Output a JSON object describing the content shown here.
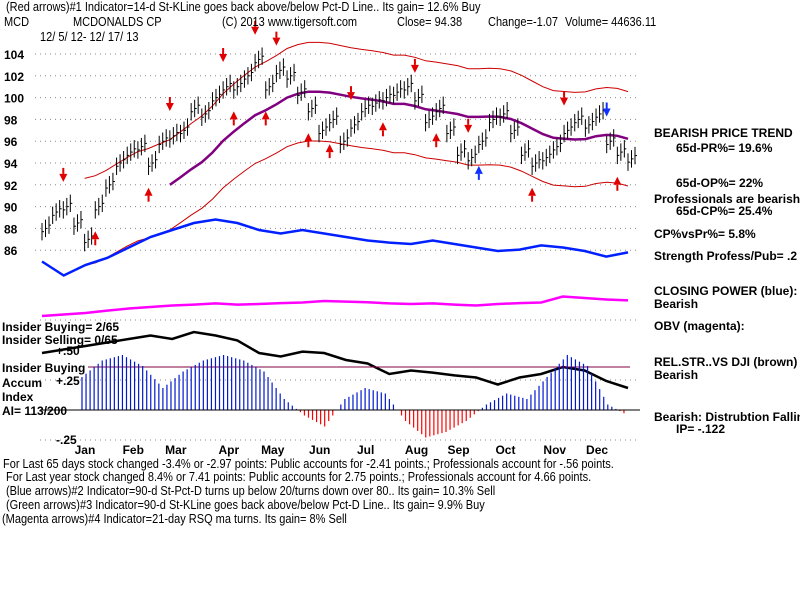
{
  "header": {
    "indicator1": "(Red arrows)#1 Indicator=14-d St-KLine goes back above/below Pct-D Line.. Its gain= 12.6% Buy",
    "symbol": "MCD",
    "company": "MCDONALDS CP",
    "copyright": "(C) 2013 www.tigersoft.com",
    "close": "Close=  94.38",
    "change": "Change=-1.07",
    "volume": "Volume= 44636.11",
    "date_range": "12/ 5/ 12- 12/ 17/ 13"
  },
  "right_panel": {
    "trend": "BEARISH PRICE TREND",
    "pr": "65d-PR%= 19.6%",
    "op": "65d-OP%= 22%",
    "pros": "Professionals are bearish",
    "cp": "65d-CP%= 25.4%",
    "cpvspr": "CP%vsPr%=  5.8%",
    "strength": "Strength Profess/Pub= .2",
    "closing_power": "CLOSING POWER (blue):",
    "closing_power_val": "Bearish",
    "obv": "OBV (magenta):",
    "relstr": "REL.STR..VS DJI (brown)",
    "relstr_val": "Bearish",
    "distribution": "Bearish: Distrubtion Falling",
    "ip": "IP= -.122"
  },
  "left_panel": {
    "insider_buying": "Insider Buying= 2/65",
    "insider_selling": "Insider Selling= 0/65",
    "plus50": "+.50",
    "insider_buying2": "Insider Buying",
    "accum": "Accum",
    "plus25": "+.25",
    "index": "Index",
    "ai": "AI= 113/200",
    "minus25": "-.25"
  },
  "footer": {
    "line1": "For Last 65 days stock changed -3.4% or -2.97 points:  Public accounts for -2.41 points.;  Professionals account for -.56 points.",
    "line2": "For Last year stock changed  8.4% or  7.41 points:  Public accounts for  2.75 points.;  Professionals account for  4.66 points.",
    "line3": "(Blue arrows)#2 Indicator=90-d St-Pct-D turns up below 20/turns down over 80.. Its gain= 10.3% Sell",
    "line4": "(Green arrows)#3 Indicator=90-d St-KLine goes back above/below Pct-D Line.. Its gain= 9.9% Buy",
    "line5": "(Magenta arrows)#4 Indicator=21-day RSQ ma turns. Its gain= 8% Sell"
  },
  "chart_data": {
    "type": "line",
    "title": "MCD MCDONALDS CP",
    "ylim": [
      86,
      104
    ],
    "yticks": [
      "104",
      "102",
      "100",
      "98",
      "96",
      "94",
      "92",
      "90",
      "88",
      "86"
    ],
    "months": [
      "Jan",
      "Feb",
      "Mar",
      "Apr",
      "May",
      "Jun",
      "Jul",
      "Aug",
      "Sep",
      "Oct",
      "Nov",
      "Dec"
    ],
    "month_week_index": [
      4,
      8.5,
      12.5,
      17.5,
      21.5,
      26,
      30.5,
      35,
      39,
      43.5,
      48,
      52
    ],
    "closes": [
      88,
      89.5,
      90,
      88.5,
      87,
      90,
      92,
      94,
      95,
      95.5,
      94,
      96,
      96.5,
      97,
      99,
      98.5,
      100,
      101,
      101,
      102,
      103.5,
      101,
      102.5,
      102,
      100.5,
      99,
      97,
      98,
      96,
      97.5,
      99,
      99.5,
      100,
      100.5,
      101,
      100,
      98,
      99,
      97,
      95,
      94.5,
      96,
      98,
      98.5,
      97,
      95,
      94,
      94.5,
      95.5,
      97,
      98,
      97.5,
      98.5,
      96,
      95,
      94.38
    ],
    "closing_power": [
      0.55,
      0.35,
      0.5,
      0.6,
      0.75,
      0.9,
      1.0,
      1.1,
      1.15,
      1.1,
      1.0,
      0.95,
      1.0,
      0.95,
      0.9,
      0.85,
      0.82,
      0.8,
      0.85,
      0.8,
      0.75,
      0.7,
      0.72,
      0.78,
      0.75,
      0.7,
      0.62,
      0.68
    ],
    "obv": [
      0.2,
      0.25,
      0.3,
      0.38,
      0.45,
      0.5,
      0.55,
      0.58,
      0.62,
      0.58,
      0.6,
      0.63,
      0.65,
      0.7,
      0.68,
      0.66,
      0.62,
      0.6,
      0.62,
      0.58,
      0.55,
      0.6,
      0.63,
      0.65,
      0.85,
      0.8,
      0.75,
      0.72
    ],
    "rel_strength": [
      0.6,
      0.65,
      0.7,
      0.75,
      0.8,
      0.85,
      0.8,
      0.9,
      0.85,
      0.78,
      0.6,
      0.55,
      0.62,
      0.6,
      0.5,
      0.45,
      0.3,
      0.35,
      0.32,
      0.28,
      0.25,
      0.15,
      0.25,
      0.3,
      0.4,
      0.35,
      0.2,
      0.1
    ],
    "accum_index": [
      0.3,
      0.45,
      0.5,
      0.4,
      0.2,
      0.35,
      0.45,
      0.5,
      0.45,
      0.35,
      0.1,
      -0.05,
      -0.15,
      0.1,
      0.2,
      0.15,
      -0.1,
      -0.25,
      -0.2,
      -0.1,
      0.05,
      0.15,
      0.1,
      0.3,
      0.5,
      0.4,
      0.05,
      -0.05
    ],
    "arrows": [
      {
        "week": 2,
        "dir": "down",
        "color": "red"
      },
      {
        "week": 5,
        "dir": "up",
        "color": "red"
      },
      {
        "week": 12,
        "dir": "down",
        "color": "red"
      },
      {
        "week": 10,
        "dir": "up",
        "color": "red"
      },
      {
        "week": 17,
        "dir": "down",
        "color": "red"
      },
      {
        "week": 20,
        "dir": "down",
        "color": "red"
      },
      {
        "week": 22,
        "dir": "down",
        "color": "red"
      },
      {
        "week": 18,
        "dir": "up",
        "color": "red"
      },
      {
        "week": 21,
        "dir": "up",
        "color": "red"
      },
      {
        "week": 25,
        "dir": "up",
        "color": "red"
      },
      {
        "week": 27,
        "dir": "up",
        "color": "red"
      },
      {
        "week": 29,
        "dir": "down",
        "color": "red"
      },
      {
        "week": 32,
        "dir": "up",
        "color": "red"
      },
      {
        "week": 35,
        "dir": "down",
        "color": "red"
      },
      {
        "week": 37,
        "dir": "up",
        "color": "red"
      },
      {
        "week": 41,
        "dir": "up",
        "color": "blue"
      },
      {
        "week": 40,
        "dir": "down",
        "color": "red"
      },
      {
        "week": 46,
        "dir": "up",
        "color": "red"
      },
      {
        "week": 49,
        "dir": "down",
        "color": "red"
      },
      {
        "week": 53,
        "dir": "down",
        "color": "blue"
      },
      {
        "week": 54,
        "dir": "up",
        "color": "red"
      }
    ]
  }
}
